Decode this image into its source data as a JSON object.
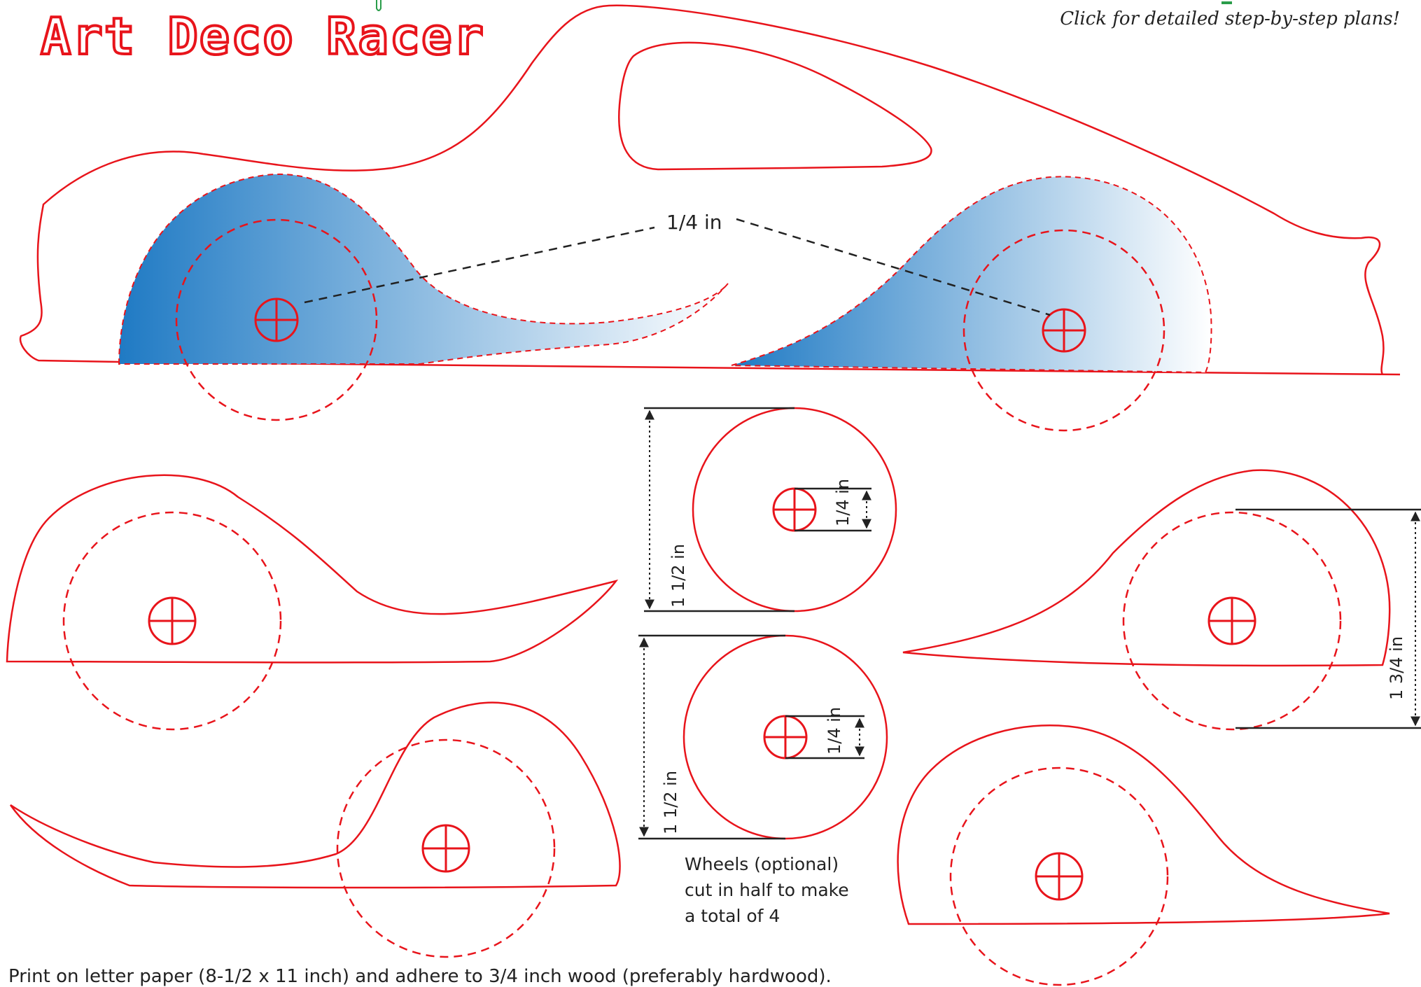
{
  "header": {
    "title": "Art Deco Racer",
    "plans_link": "Click for detailed step-by-step plans!"
  },
  "body_outline": {
    "axle_spacing_label": "1/4 in"
  },
  "wheels": {
    "large_diameter_label": "1 1/2 in",
    "axle_hole_label": "1/4 in",
    "small_diameter_label": "1 1/2 in",
    "small_axle_hole_label": "1/4 in",
    "note_lines": [
      "Wheels (optional)",
      "cut in half to make",
      "a total of 4"
    ]
  },
  "fender_rear": {
    "height_label": "1 3/4 in"
  },
  "footer": {
    "instructions": "Print on letter paper (8-1/2 x 11 inch) and adhere to 3/4 inch wood (preferably hardwood)."
  },
  "colors": {
    "outline": "#e8141b",
    "gradient_start": "#1f7ac4",
    "gradient_end": "#ffffff",
    "dimension": "#222222"
  }
}
